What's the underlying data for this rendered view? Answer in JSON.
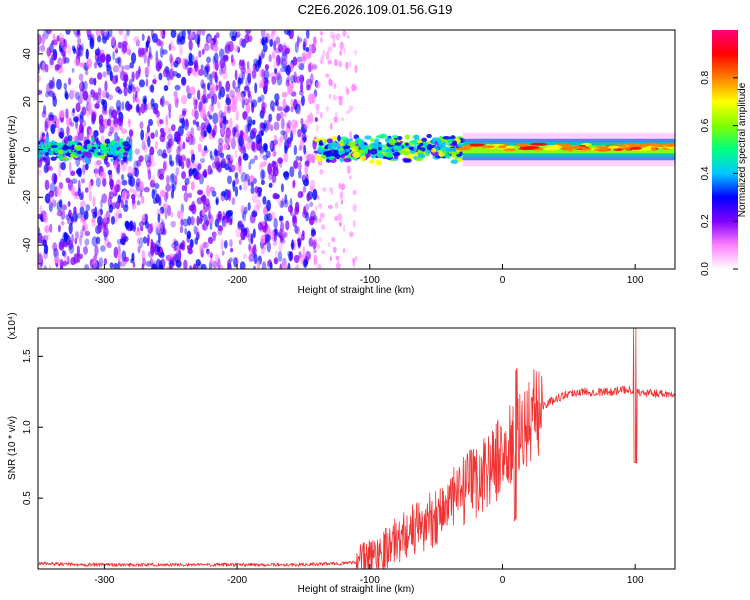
{
  "title": "C2E6.2026.109.01.56.G19",
  "chart_data": [
    {
      "type": "heatmap",
      "xlabel": "Height of straight line (km)",
      "ylabel": "Frequency (Hz)",
      "xlim": [
        -350,
        130
      ],
      "ylim": [
        -50,
        50
      ],
      "x_ticks": [
        -300,
        -200,
        -100,
        0,
        100
      ],
      "y_ticks": [
        -40,
        -20,
        0,
        20,
        40
      ],
      "colorbar": {
        "label": "Normalized spectral amplitude",
        "range": [
          0,
          1
        ],
        "ticks": [
          "0.0",
          "0.2",
          "0.4",
          "0.6",
          "0.8"
        ],
        "colors": [
          "#ffffff",
          "#ff80ff",
          "#8000ff",
          "#0000ff",
          "#00c8ff",
          "#00ff80",
          "#80ff00",
          "#ffff00",
          "#ff8000",
          "#ff0000",
          "#ff0080"
        ]
      },
      "features": [
        {
          "x_range": [
            -350,
            -140
          ],
          "freq_spread_hz": 50,
          "amplitude": 0.25,
          "description_value": "broadband scatter"
        },
        {
          "x_range": [
            -350,
            -280
          ],
          "freq_spread_hz": 5,
          "amplitude": 0.45
        },
        {
          "x_range": [
            -140,
            -110
          ],
          "freq_spread_hz": 50,
          "amplitude": 0.08
        },
        {
          "x_range": [
            -140,
            -30
          ],
          "freq_spread_hz": 6,
          "amplitude": 0.55
        },
        {
          "x_range": [
            -30,
            130
          ],
          "freq_spread_hz": 3,
          "amplitude": 0.85
        }
      ]
    },
    {
      "type": "line",
      "xlabel": "Height of straight line (km)",
      "ylabel": "SNR (10 * v/v)",
      "y_multiplier": "(x10⁴)",
      "xlim": [
        -350,
        130
      ],
      "ylim": [
        0,
        1.7
      ],
      "x_ticks": [
        -300,
        -200,
        -100,
        0,
        100
      ],
      "y_ticks": [
        0.5,
        1.0,
        1.5
      ],
      "y_tick_labels": [
        "0.5",
        "1.0",
        "1.5"
      ],
      "color": "#ee3333",
      "series": [
        {
          "x": [
            -350,
            -320,
            -300,
            -280,
            -250,
            -200,
            -150,
            -120,
            -110,
            -100,
            -90,
            -80,
            -70,
            -60,
            -50,
            -40,
            -30,
            -20,
            -10,
            0,
            10,
            20,
            30,
            40,
            50,
            60,
            70,
            80,
            90,
            95,
            100,
            105,
            110,
            120,
            130
          ],
          "values": [
            0.04,
            0.03,
            0.03,
            0.03,
            0.03,
            0.03,
            0.03,
            0.04,
            0.05,
            0.08,
            0.14,
            0.2,
            0.27,
            0.3,
            0.38,
            0.46,
            0.54,
            0.62,
            0.72,
            0.8,
            0.9,
            1.05,
            1.15,
            1.2,
            1.24,
            1.25,
            1.25,
            1.25,
            1.26,
            1.27,
            1.25,
            1.24,
            1.24,
            1.24,
            1.23
          ]
        }
      ]
    }
  ]
}
